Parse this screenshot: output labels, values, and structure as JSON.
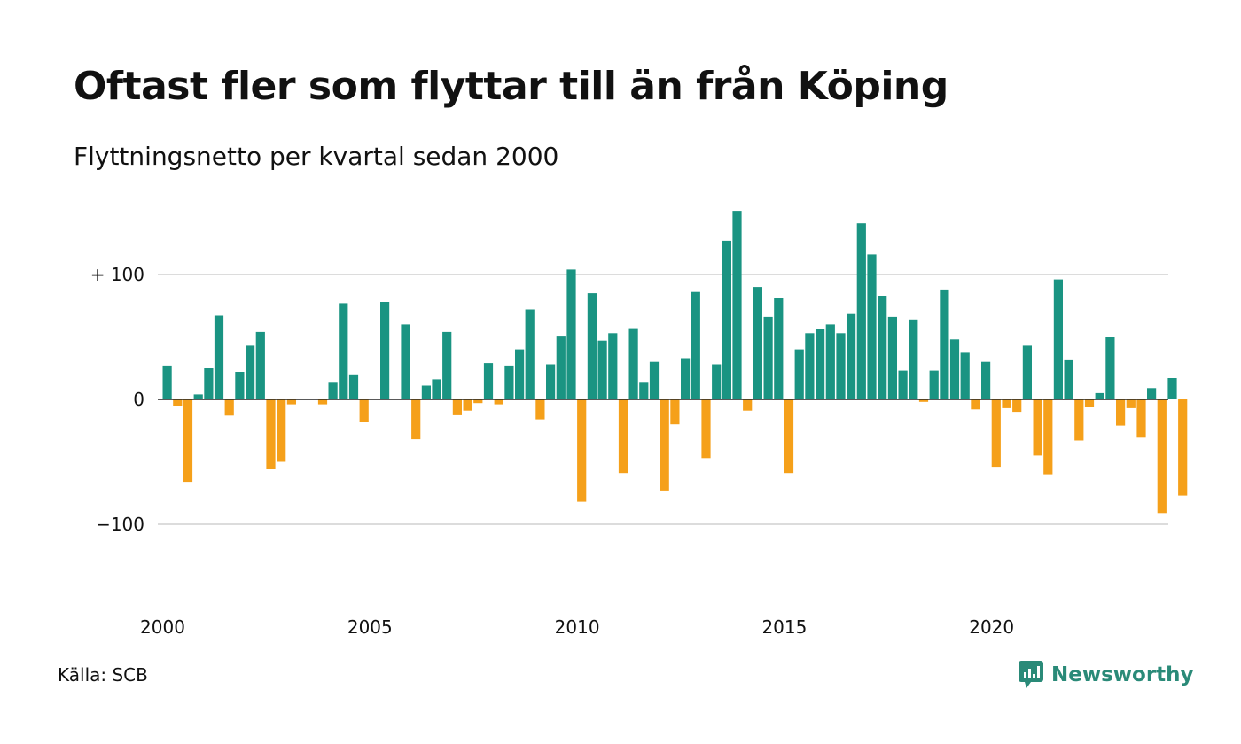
{
  "header": {
    "title": "Oftast fler som flyttar till än från Köping",
    "subtitle": "Flyttningsnetto per kvartal sedan 2000"
  },
  "footer": {
    "source": "Källa: SCB",
    "brand": "Newsworthy"
  },
  "colors": {
    "positive": "#1a9482",
    "negative": "#f5a01a",
    "grid": "#dcdcdc",
    "brand": "#2a8a78"
  },
  "chart_data": {
    "type": "bar",
    "title": "Oftast fler som flyttar till än från Köping",
    "subtitle": "Flyttningsnetto per kvartal sedan 2000",
    "xlabel": "",
    "ylabel": "",
    "ylim": [
      -160,
      160
    ],
    "grid": true,
    "yticks": [
      {
        "value": 100,
        "label": "+ 100"
      },
      {
        "value": 0,
        "label": "0"
      },
      {
        "value": -100,
        "label": "−100"
      }
    ],
    "xticks": [
      {
        "value": 2000,
        "label": "2000"
      },
      {
        "value": 2005,
        "label": "2005"
      },
      {
        "value": 2010,
        "label": "2010"
      },
      {
        "value": 2015,
        "label": "2015"
      },
      {
        "value": 2020,
        "label": "2020"
      }
    ],
    "categories": [
      "2000 K1",
      "2000 K2",
      "2000 K3",
      "2000 K4",
      "2001 K1",
      "2001 K2",
      "2001 K3",
      "2001 K4",
      "2002 K1",
      "2002 K2",
      "2002 K3",
      "2002 K4",
      "2003 K1",
      "2003 K2",
      "2003 K3",
      "2003 K4",
      "2004 K1",
      "2004 K2",
      "2004 K3",
      "2004 K4",
      "2005 K1",
      "2005 K2",
      "2005 K3",
      "2005 K4",
      "2006 K1",
      "2006 K2",
      "2006 K3",
      "2006 K4",
      "2007 K1",
      "2007 K2",
      "2007 K3",
      "2007 K4",
      "2008 K1",
      "2008 K2",
      "2008 K3",
      "2008 K4",
      "2009 K1",
      "2009 K2",
      "2009 K3",
      "2009 K4",
      "2010 K1",
      "2010 K2",
      "2010 K3",
      "2010 K4",
      "2011 K1",
      "2011 K2",
      "2011 K3",
      "2011 K4",
      "2012 K1",
      "2012 K2",
      "2012 K3",
      "2012 K4",
      "2013 K1",
      "2013 K2",
      "2013 K3",
      "2013 K4",
      "2014 K1",
      "2014 K2",
      "2014 K3",
      "2014 K4",
      "2015 K1",
      "2015 K2",
      "2015 K3",
      "2015 K4",
      "2016 K1",
      "2016 K2",
      "2016 K3",
      "2016 K4",
      "2017 K1",
      "2017 K2",
      "2017 K3",
      "2017 K4",
      "2018 K1",
      "2018 K2",
      "2018 K3",
      "2018 K4",
      "2019 K1",
      "2019 K2",
      "2019 K3",
      "2019 K4",
      "2020 K1",
      "2020 K2",
      "2020 K3",
      "2020 K4",
      "2021 K1",
      "2021 K2",
      "2021 K3",
      "2021 K4",
      "2022 K1",
      "2022 K2",
      "2022 K3",
      "2022 K4",
      "2023 K1",
      "2023 K2",
      "2023 K3",
      "2023 K4",
      "2024 K1",
      "2024 K2",
      "2024 K3",
      "2024 K4"
    ],
    "values": [
      27,
      -5,
      -66,
      4,
      25,
      67,
      -13,
      22,
      43,
      54,
      -56,
      -50,
      -4,
      0,
      0,
      -4,
      14,
      77,
      20,
      -18,
      0,
      78,
      0,
      60,
      -32,
      11,
      16,
      54,
      -12,
      -9,
      -3,
      29,
      -4,
      27,
      40,
      72,
      -16,
      28,
      51,
      104,
      -82,
      85,
      47,
      53,
      -59,
      57,
      14,
      30,
      -73,
      -20,
      33,
      86,
      -47,
      28,
      127,
      151,
      -9,
      90,
      66,
      81,
      -59,
      40,
      53,
      56,
      60,
      53,
      69,
      141,
      116,
      83,
      66,
      23,
      64,
      -2,
      23,
      88,
      48,
      38,
      -8,
      30,
      -54,
      -7,
      -10,
      43,
      -45,
      -60,
      96,
      32,
      -33,
      -6,
      5,
      50,
      -21,
      -7,
      -30,
      9,
      -91,
      17,
      -77,
      0
    ]
  }
}
